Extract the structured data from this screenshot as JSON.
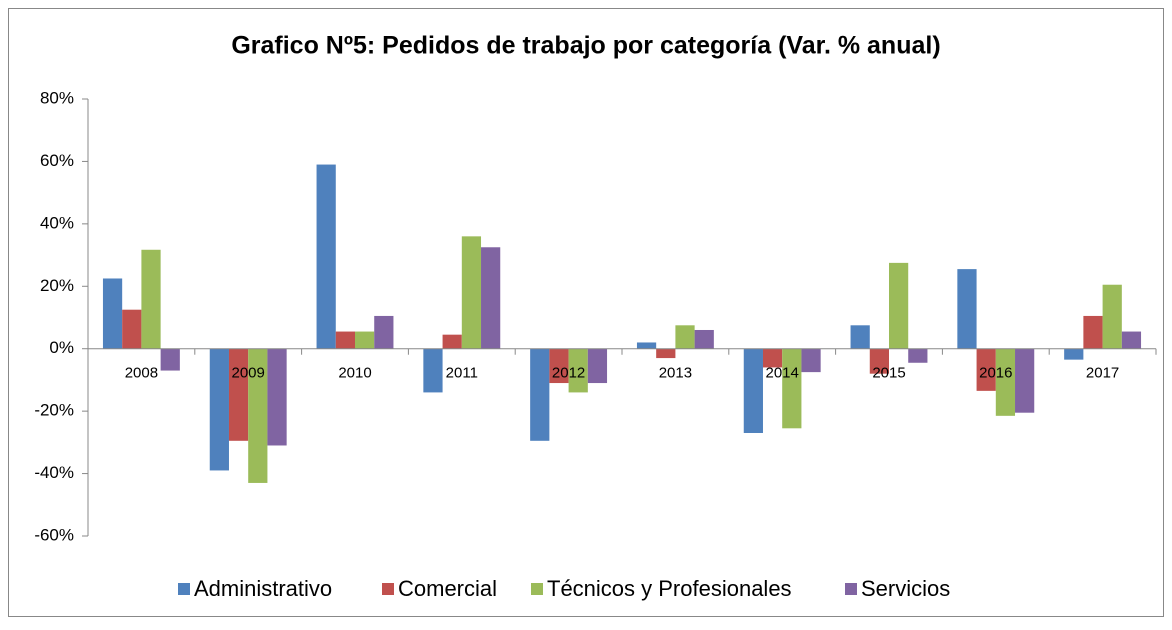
{
  "chart_data": {
    "type": "bar",
    "title": "Grafico Nº5: Pedidos de trabajo por categoría (Var. % anual)",
    "categories": [
      "2008",
      "2009",
      "2010",
      "2011",
      "2012",
      "2013",
      "2014",
      "2015",
      "2016",
      "2017"
    ],
    "series": [
      {
        "name": "Administrativo",
        "color": "#4f81bd",
        "values": [
          22.5,
          -39,
          59,
          -14,
          -29.5,
          2,
          -27,
          7.5,
          25.5,
          -3.5
        ]
      },
      {
        "name": "Comercial",
        "color": "#c0504d",
        "values": [
          12.5,
          -29.5,
          5.5,
          4.5,
          -11,
          -3,
          -6,
          -8,
          -13.5,
          10.5
        ]
      },
      {
        "name": "Técnicos y Profesionales",
        "color": "#9bbb59",
        "values": [
          31.7,
          -43,
          5.5,
          36,
          -14,
          7.5,
          -25.5,
          27.5,
          -21.5,
          20.5
        ]
      },
      {
        "name": "Servicios",
        "color": "#8064a2",
        "values": [
          -7,
          -31,
          10.5,
          32.5,
          -11,
          6,
          -7.5,
          -4.5,
          -20.5,
          5.5
        ]
      }
    ],
    "ylim": [
      -60,
      80
    ],
    "yticks": [
      {
        "value": -60,
        "label": "-60%"
      },
      {
        "value": -40,
        "label": "-40%"
      },
      {
        "value": -20,
        "label": "-20%"
      },
      {
        "value": 0,
        "label": "0%"
      },
      {
        "value": 20,
        "label": "20%"
      },
      {
        "value": 40,
        "label": "40%"
      },
      {
        "value": 60,
        "label": "60%"
      },
      {
        "value": 80,
        "label": "80%"
      }
    ],
    "grid": false,
    "legend": "bottom"
  }
}
